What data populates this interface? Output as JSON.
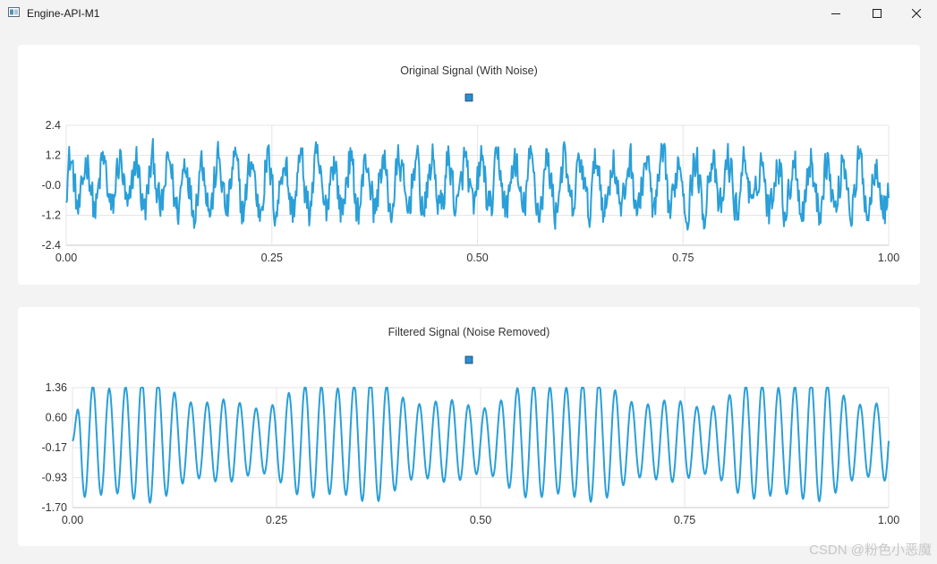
{
  "window": {
    "title": "Engine-API-M1",
    "controls": [
      "minimize",
      "maximize",
      "close"
    ]
  },
  "colors": {
    "series": "#2a9fd8",
    "grid": "#e6e6e6",
    "axis": "#c8c8c8",
    "legend_marker": "#2a8fd0"
  },
  "watermark": "CSDN @粉色小恶魔",
  "chart_data": [
    {
      "type": "line",
      "title": "Original Signal (With Noise)",
      "xlabel": "",
      "ylabel": "",
      "xlim": [
        0,
        1
      ],
      "ylim": [
        -2.4,
        2.4
      ],
      "x_ticks": [
        "0.00",
        "0.25",
        "0.50",
        "0.75",
        "1.00"
      ],
      "y_ticks": [
        "2.4",
        "1.2",
        "-0.0",
        "-1.2",
        "-2.4"
      ],
      "grid": true,
      "legend": {
        "placement": "top-center",
        "entries": [
          ""
        ]
      },
      "series": [
        {
          "description": "approx. sinusoid with ~50 cycles over [0,1] plus random noise; amplitude ~1.0, peaks reach ~2.4",
          "frequency_cycles": 50,
          "amplitude": 1.0,
          "noise_amplitude": 0.9
        }
      ]
    },
    {
      "type": "line",
      "title": "Filtered Signal (Noise Removed)",
      "xlabel": "",
      "ylabel": "",
      "xlim": [
        0,
        1
      ],
      "ylim": [
        -1.7,
        1.36
      ],
      "x_ticks": [
        "0.00",
        "0.25",
        "0.50",
        "0.75",
        "1.00"
      ],
      "y_ticks": [
        "1.36",
        "0.60",
        "-0.17",
        "-0.93",
        "-1.70"
      ],
      "grid": true,
      "legend": {
        "placement": "top-center",
        "entries": [
          ""
        ]
      },
      "series": [
        {
          "description": "smooth sinusoid, ~50 cycles over [0,1], amplitude ~1.1–1.4, starts near 0",
          "frequency_cycles": 50,
          "amplitude": 1.2
        }
      ]
    }
  ]
}
